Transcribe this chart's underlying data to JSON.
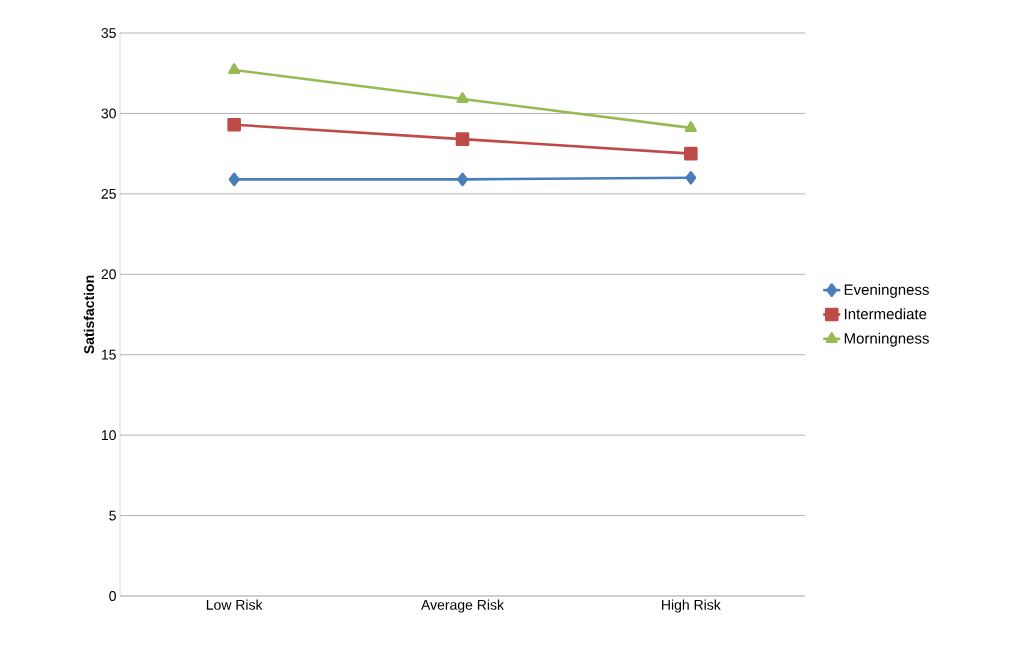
{
  "chart_data": {
    "type": "line",
    "ylabel": "Satisfaction",
    "categories": [
      "Low Risk",
      "Average Risk",
      "High Risk"
    ],
    "series": [
      {
        "name": "Eveningness",
        "color": "#4a7ebb",
        "marker": "diamond",
        "values": [
          25.9,
          25.9,
          26.0
        ]
      },
      {
        "name": "Intermediate",
        "color": "#be4b48",
        "marker": "square",
        "values": [
          29.3,
          28.4,
          27.5
        ]
      },
      {
        "name": "Morningness",
        "color": "#98b954",
        "marker": "triangle",
        "values": [
          32.7,
          30.9,
          29.1
        ]
      }
    ],
    "ylim": [
      0,
      35
    ],
    "yticks": [
      0,
      5,
      10,
      15,
      20,
      25,
      30,
      35
    ],
    "grid": "y",
    "legend": "right"
  }
}
